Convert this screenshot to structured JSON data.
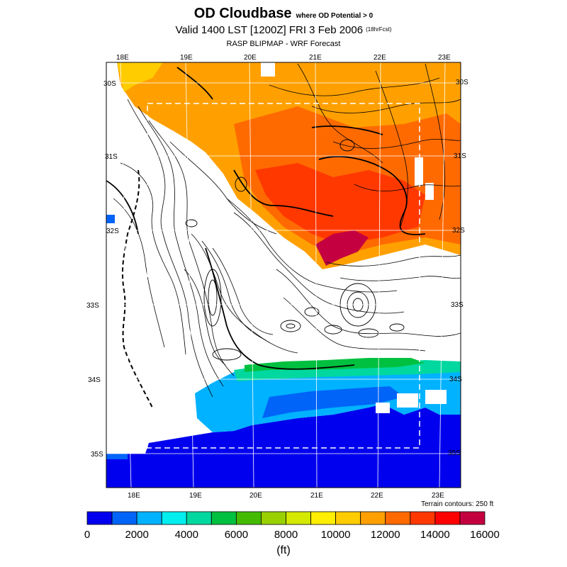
{
  "title": {
    "main": "OD Cloudbase",
    "qualifier": "where OD Potential > 0",
    "valid_time": "Valid 1400 LST [1200Z] FRI 3 Feb 2006",
    "forecast_hours": "(18hrFcst)",
    "source": "RASP BLIPMAP - WRF Forecast"
  },
  "map": {
    "top_lon_labels": [
      "18E",
      "19E",
      "20E",
      "21E",
      "22E",
      "23E"
    ],
    "bottom_lon_labels": [
      "18E",
      "19E",
      "20E",
      "21E",
      "22E",
      "23E"
    ],
    "left_lat_labels": [
      "30S",
      "31S",
      "32S",
      "33S",
      "34S",
      "35S"
    ],
    "right_lat_labels": [
      "30S",
      "31S",
      "32S",
      "33S",
      "34S",
      "35S"
    ],
    "terrain_note": "Terrain contours: 250 ft",
    "fill_levels_ft": [
      {
        "region": "north-interior",
        "range": "10000-15000"
      },
      {
        "region": "karoo-max",
        "range": "15000-16000"
      },
      {
        "region": "south-coast",
        "range": "3000-6000"
      },
      {
        "region": "ocean-south",
        "range": "0-2000"
      }
    ]
  },
  "colorbar": {
    "colors": [
      "#0000ee",
      "#0064f8",
      "#00b2ff",
      "#00eeee",
      "#00d8a0",
      "#00c040",
      "#44bb00",
      "#99d000",
      "#d4e800",
      "#ffee00",
      "#ffcc00",
      "#ffa000",
      "#ff6a00",
      "#ff3800",
      "#ff0000",
      "#c40040"
    ],
    "tick_labels": [
      "0",
      "2000",
      "4000",
      "6000",
      "8000",
      "10000",
      "12000",
      "14000",
      "16000"
    ],
    "unit": "(ft)"
  }
}
